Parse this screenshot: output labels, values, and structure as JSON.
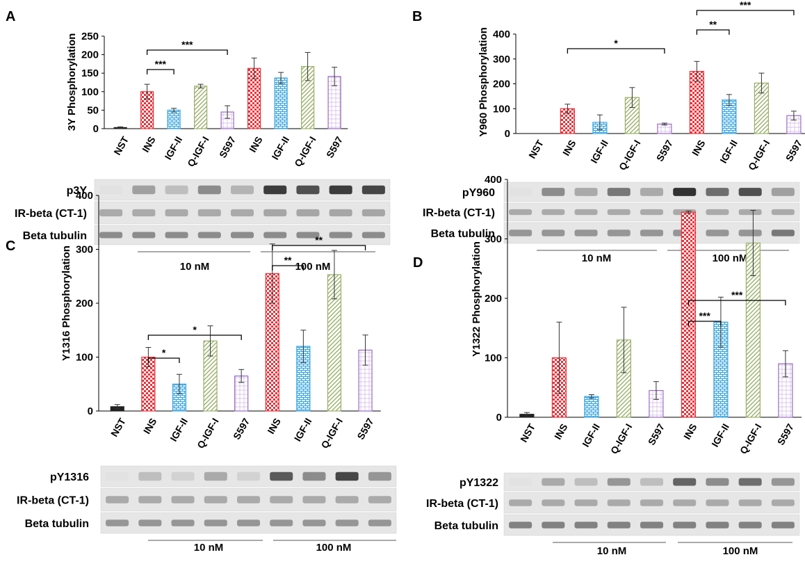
{
  "colors": {
    "INS": "#e8333a",
    "IGF-II": "#3fa7e0",
    "Q-IGF-I": "#9ab06a",
    "S597": "#9b6bc4",
    "NST": "#222222"
  },
  "chart_data": [
    {
      "type": "bar",
      "panel": "A",
      "ylabel": "3Y Phosphorylation",
      "ylim": [
        0,
        250
      ],
      "yticks": [
        0,
        50,
        100,
        150,
        200,
        250
      ],
      "categories": [
        "NST",
        "INS",
        "IGF-II",
        "Q-IGF-I",
        "S597",
        "INS",
        "IGF-II",
        "Q-IGF-I",
        "S597"
      ],
      "values": [
        3,
        100,
        50,
        115,
        45,
        163,
        137,
        168,
        141
      ],
      "errors": [
        2,
        20,
        5,
        5,
        17,
        28,
        15,
        38,
        25
      ],
      "significance": [
        {
          "from": 1,
          "to": 2,
          "label": "***"
        },
        {
          "from": 1,
          "to": 4,
          "label": "***"
        }
      ],
      "blot_rows": [
        "p3Y",
        "IR-beta (CT-1)",
        "Beta tubulin"
      ],
      "blot_intensity": [
        [
          0.02,
          0.35,
          0.2,
          0.45,
          0.25,
          0.85,
          0.75,
          0.85,
          0.8
        ],
        [
          0.3,
          0.3,
          0.3,
          0.3,
          0.3,
          0.32,
          0.32,
          0.32,
          0.32
        ],
        [
          0.45,
          0.45,
          0.45,
          0.45,
          0.45,
          0.45,
          0.45,
          0.45,
          0.45
        ]
      ],
      "concentrations": [
        "10 nM",
        "100 nM"
      ]
    },
    {
      "type": "bar",
      "panel": "B",
      "ylabel": "Y960 Phosphorylation",
      "ylim": [
        0,
        400
      ],
      "yticks": [
        0,
        100,
        200,
        300,
        400
      ],
      "categories": [
        "NST",
        "INS",
        "IGF-II",
        "Q-IGF-I",
        "S597",
        "INS",
        "IGF-II",
        "Q-IGF-I",
        "S597"
      ],
      "values": [
        0,
        100,
        45,
        145,
        38,
        250,
        135,
        203,
        72
      ],
      "errors": [
        0,
        18,
        30,
        40,
        4,
        40,
        22,
        40,
        18
      ],
      "significance": [
        {
          "from": 1,
          "to": 4,
          "label": "*"
        },
        {
          "from": 5,
          "to": 6,
          "label": "**"
        },
        {
          "from": 5,
          "to": 8,
          "label": "***"
        }
      ],
      "blot_rows": [
        "pY960",
        "IR-beta (CT-1)",
        "Beta tubulin"
      ],
      "blot_intensity": [
        [
          0.02,
          0.45,
          0.3,
          0.55,
          0.3,
          0.9,
          0.6,
          0.75,
          0.35
        ],
        [
          0.3,
          0.3,
          0.3,
          0.3,
          0.3,
          0.3,
          0.3,
          0.3,
          0.3
        ],
        [
          0.4,
          0.4,
          0.4,
          0.4,
          0.4,
          0.4,
          0.4,
          0.4,
          0.55
        ]
      ],
      "concentrations": [
        "10 nM",
        "100 nM"
      ]
    },
    {
      "type": "bar",
      "panel": "C",
      "ylabel": "Y1316 Phosphorylation",
      "ylim": [
        0,
        400
      ],
      "yticks": [
        0,
        100,
        200,
        300,
        400
      ],
      "categories": [
        "NST",
        "INS",
        "IGF-II",
        "Q-IGF-I",
        "S597",
        "INS",
        "IGF-II",
        "Q-IGF-I",
        "S597"
      ],
      "values": [
        8,
        100,
        50,
        130,
        65,
        255,
        120,
        253,
        113
      ],
      "errors": [
        4,
        18,
        18,
        28,
        12,
        55,
        30,
        45,
        28
      ],
      "significance": [
        {
          "from": 1,
          "to": 2,
          "label": "*"
        },
        {
          "from": 1,
          "to": 4,
          "label": "*"
        },
        {
          "from": 5,
          "to": 6,
          "label": "**"
        },
        {
          "from": 5,
          "to": 8,
          "label": "**"
        }
      ],
      "blot_rows": [
        "pY1316",
        "IR-beta (CT-1)",
        "Beta tubulin"
      ],
      "blot_intensity": [
        [
          0.02,
          0.2,
          0.1,
          0.3,
          0.1,
          0.7,
          0.45,
          0.8,
          0.4
        ],
        [
          0.3,
          0.3,
          0.3,
          0.3,
          0.3,
          0.3,
          0.3,
          0.3,
          0.3
        ],
        [
          0.4,
          0.4,
          0.4,
          0.4,
          0.4,
          0.4,
          0.4,
          0.4,
          0.4
        ]
      ],
      "concentrations": [
        "10 nM",
        "100 nM"
      ]
    },
    {
      "type": "bar",
      "panel": "D",
      "ylabel": "Y1322 Phosphorylation",
      "ylim": [
        0,
        400
      ],
      "yticks": [
        0,
        100,
        200,
        300,
        400
      ],
      "categories": [
        "NST",
        "INS",
        "IGF-II",
        "Q-IGF-I",
        "S597",
        "INS",
        "IGF-II",
        "Q-IGF-I",
        "S597"
      ],
      "values": [
        5,
        100,
        35,
        130,
        45,
        345,
        160,
        293,
        90
      ],
      "errors": [
        3,
        60,
        3,
        55,
        15,
        2,
        42,
        55,
        22
      ],
      "significance": [
        {
          "from": 5,
          "to": 6,
          "label": "***"
        },
        {
          "from": 5,
          "to": 8,
          "label": "***"
        }
      ],
      "blot_rows": [
        "pY1322",
        "IR-beta (CT-1)",
        "Beta tubulin"
      ],
      "blot_intensity": [
        [
          0.02,
          0.3,
          0.2,
          0.4,
          0.2,
          0.65,
          0.45,
          0.6,
          0.4
        ],
        [
          0.3,
          0.3,
          0.3,
          0.3,
          0.3,
          0.3,
          0.3,
          0.3,
          0.3
        ],
        [
          0.5,
          0.5,
          0.5,
          0.5,
          0.5,
          0.5,
          0.5,
          0.5,
          0.5
        ]
      ],
      "concentrations": [
        "10 nM",
        "100 nM"
      ]
    }
  ]
}
